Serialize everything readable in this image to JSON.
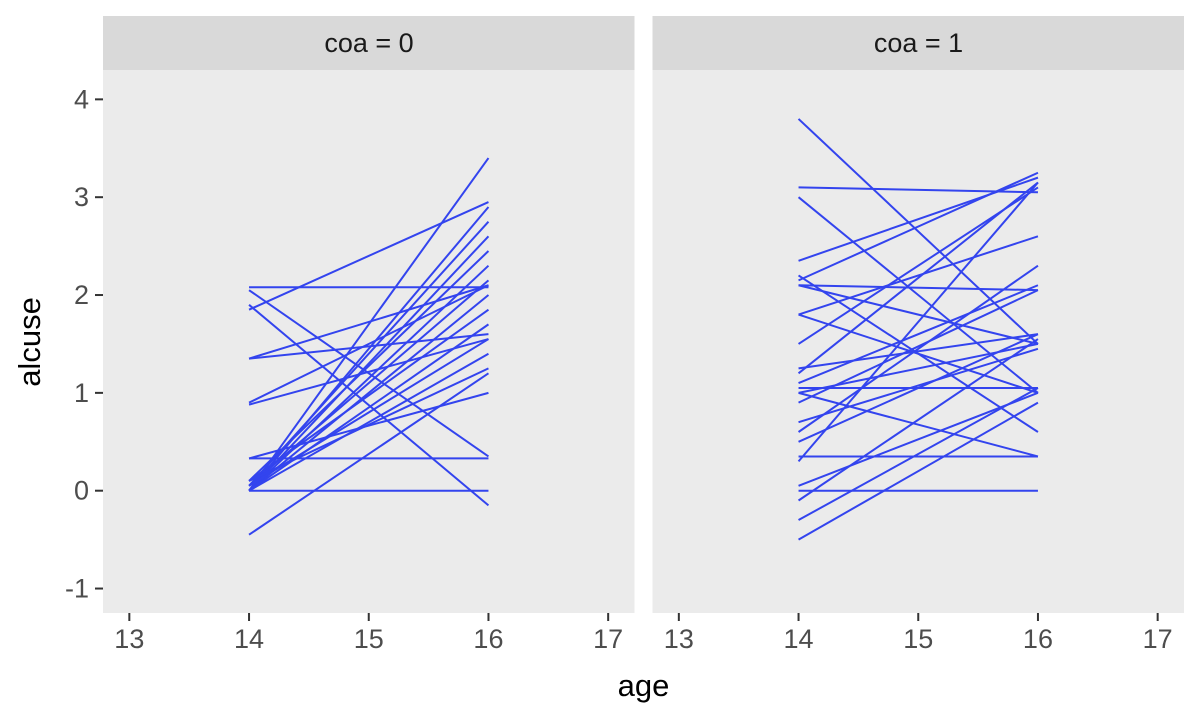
{
  "chart_data": {
    "type": "line",
    "title": "",
    "xlabel": "age",
    "ylabel": "alcuse",
    "x_ticks": [
      13,
      14,
      15,
      16,
      17
    ],
    "y_ticks": [
      -1,
      0,
      1,
      2,
      3,
      4
    ],
    "xlim": [
      12.78,
      17.22
    ],
    "ylim": [
      -1.25,
      4.3
    ],
    "x_span": [
      14,
      16
    ],
    "grid": false,
    "legend": "none",
    "colors": {
      "line": "#3344EE",
      "panel_bg": "#EBEBEB",
      "strip_bg": "#D9D9D9",
      "tick_text": "#4D4D4D",
      "tick_mark": "#333333",
      "title_text": "#000000"
    },
    "facets": [
      {
        "label": "coa = 0",
        "lines": [
          [
            0.0,
            3.4
          ],
          [
            2.08,
            2.08
          ],
          [
            1.85,
            2.95
          ],
          [
            1.35,
            2.1
          ],
          [
            1.9,
            -0.15
          ],
          [
            0.33,
            0.33
          ],
          [
            0.0,
            0.0
          ],
          [
            0.9,
            2.1
          ],
          [
            0.88,
            1.55
          ],
          [
            -0.45,
            1.2
          ],
          [
            0.0,
            2.9
          ],
          [
            0.05,
            2.75
          ],
          [
            0.0,
            2.6
          ],
          [
            0.1,
            2.45
          ],
          [
            0.0,
            2.3
          ],
          [
            0.05,
            2.15
          ],
          [
            0.0,
            2.0
          ],
          [
            0.1,
            1.85
          ],
          [
            0.0,
            1.7
          ],
          [
            0.05,
            1.55
          ],
          [
            0.0,
            1.4
          ],
          [
            0.1,
            1.25
          ],
          [
            2.05,
            0.35
          ],
          [
            1.35,
            1.6
          ],
          [
            0.33,
            1.0
          ]
        ]
      },
      {
        "label": "coa = 1",
        "lines": [
          [
            3.8,
            1.5
          ],
          [
            3.1,
            3.05
          ],
          [
            3.0,
            1.0
          ],
          [
            2.35,
            3.2
          ],
          [
            2.15,
            3.25
          ],
          [
            2.1,
            1.5
          ],
          [
            2.2,
            0.6
          ],
          [
            2.1,
            2.05
          ],
          [
            1.8,
            2.6
          ],
          [
            1.8,
            1.0
          ],
          [
            1.5,
            3.1
          ],
          [
            1.2,
            3.15
          ],
          [
            1.25,
            1.6
          ],
          [
            1.1,
            2.1
          ],
          [
            1.05,
            1.05
          ],
          [
            1.0,
            1.5
          ],
          [
            1.0,
            0.35
          ],
          [
            0.9,
            2.05
          ],
          [
            0.7,
            1.45
          ],
          [
            0.6,
            2.3
          ],
          [
            0.5,
            1.6
          ],
          [
            0.35,
            0.35
          ],
          [
            0.3,
            3.15
          ],
          [
            0.0,
            0.0
          ],
          [
            0.05,
            1.0
          ],
          [
            -0.1,
            1.55
          ],
          [
            -0.3,
            1.05
          ],
          [
            -0.5,
            0.9
          ]
        ]
      }
    ]
  }
}
